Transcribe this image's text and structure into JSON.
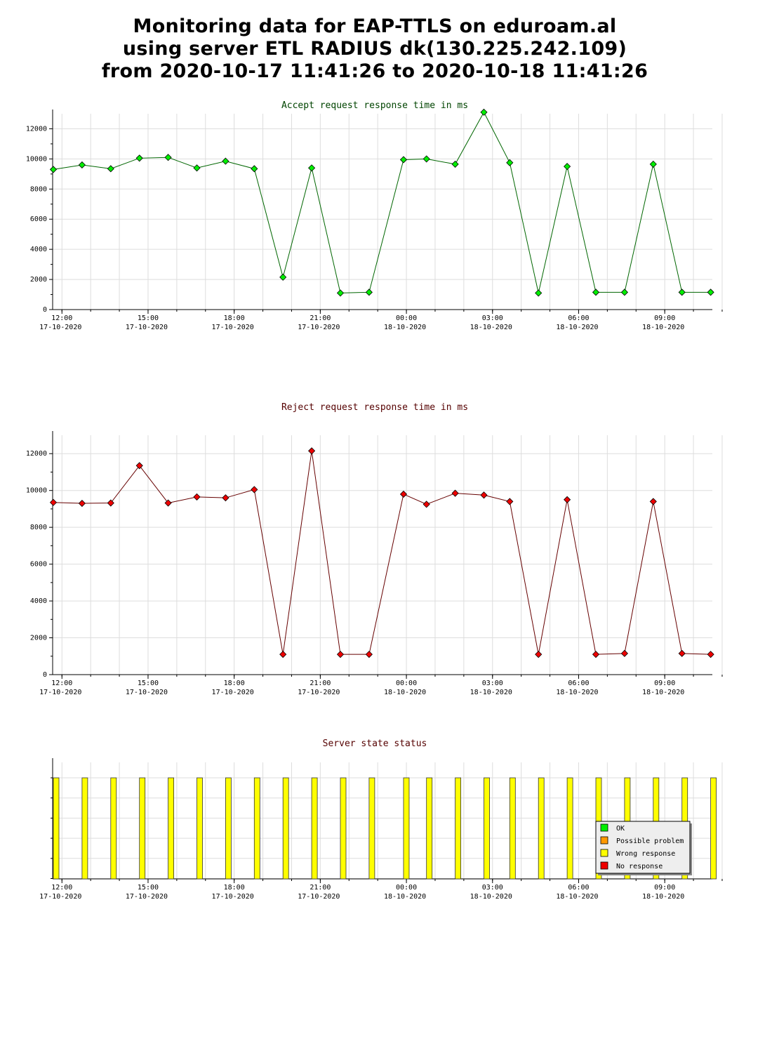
{
  "title_lines": [
    "Monitoring data for EAP-TTLS on eduroam.al",
    "using server ETL RADIUS dk(130.225.242.109)",
    "from 2020-10-17 11:41:26 to 2020-10-18 11:41:26"
  ],
  "colors": {
    "accept_line": "#006600",
    "accept_marker": "#00ee00",
    "accept_title": "#004400",
    "reject_line": "#660000",
    "reject_marker": "#ee0000",
    "reject_title": "#550000",
    "status_bar": "#ffff00",
    "grid": "#dddddd"
  },
  "x_ticks": [
    {
      "time": "12:00",
      "date": "17-10-2020",
      "hour": 0.3
    },
    {
      "time": "15:00",
      "date": "17-10-2020",
      "hour": 3.3
    },
    {
      "time": "18:00",
      "date": "17-10-2020",
      "hour": 6.3
    },
    {
      "time": "21:00",
      "date": "17-10-2020",
      "hour": 9.3
    },
    {
      "time": "00:00",
      "date": "18-10-2020",
      "hour": 12.3
    },
    {
      "time": "03:00",
      "date": "18-10-2020",
      "hour": 15.3
    },
    {
      "time": "06:00",
      "date": "18-10-2020",
      "hour": 18.3
    },
    {
      "time": "09:00",
      "date": "18-10-2020",
      "hour": 21.3
    }
  ],
  "chart_data": [
    {
      "type": "line",
      "title": "Accept request response time in ms",
      "xlabel": "",
      "ylabel": "",
      "ylim": [
        0,
        13000
      ],
      "yticks": [
        0,
        2000,
        4000,
        6000,
        8000,
        10000,
        12000
      ],
      "grid": true,
      "series": [
        {
          "x": [
            0,
            1,
            2,
            3,
            4,
            5,
            6,
            7,
            8,
            9,
            10,
            11,
            12.2,
            13,
            14,
            15,
            15.9,
            16.9,
            17.9,
            18.9,
            19.9,
            20.9,
            21.9,
            22.9
          ],
          "values": [
            9300,
            9600,
            9350,
            10050,
            10100,
            9400,
            9850,
            9350,
            2150,
            9400,
            1100,
            1150,
            9950,
            10000,
            9650,
            13100,
            9750,
            1100,
            9500,
            1150,
            1150,
            9650,
            1150,
            1150
          ]
        }
      ]
    },
    {
      "type": "line",
      "title": "Reject request response time in ms",
      "xlabel": "",
      "ylabel": "",
      "ylim": [
        0,
        13000
      ],
      "yticks": [
        0,
        2000,
        4000,
        6000,
        8000,
        10000,
        12000
      ],
      "grid": true,
      "series": [
        {
          "x": [
            0,
            1,
            2,
            3,
            4,
            5,
            6,
            7,
            8,
            9,
            10,
            11,
            12.2,
            13,
            14,
            15,
            15.9,
            16.9,
            17.9,
            18.9,
            19.9,
            20.9,
            21.9,
            22.9
          ],
          "values": [
            9350,
            9300,
            9320,
            11350,
            9320,
            9650,
            9600,
            10050,
            1100,
            12150,
            1100,
            1100,
            9800,
            9250,
            9850,
            9750,
            9400,
            1100,
            9500,
            1100,
            1150,
            9400,
            1150,
            1100
          ]
        }
      ]
    },
    {
      "type": "bar",
      "title": "Server state status",
      "xlabel": "",
      "ylabel": "",
      "grid": true,
      "legend_position": "bottom-right",
      "legend": [
        {
          "label": "OK",
          "color": "#00ee00"
        },
        {
          "label": "Possible problem",
          "color": "#ff9900"
        },
        {
          "label": "Wrong response",
          "color": "#ffff00"
        },
        {
          "label": "No response",
          "color": "#ee0000"
        }
      ],
      "series": [
        {
          "status": "Wrong response",
          "x": [
            0,
            1,
            2,
            3,
            4,
            5,
            6,
            7,
            8,
            9,
            10,
            11,
            12.2,
            13,
            14,
            15,
            15.9,
            16.9,
            17.9,
            18.9,
            19.9,
            20.9,
            21.9,
            22.9
          ]
        }
      ]
    }
  ]
}
